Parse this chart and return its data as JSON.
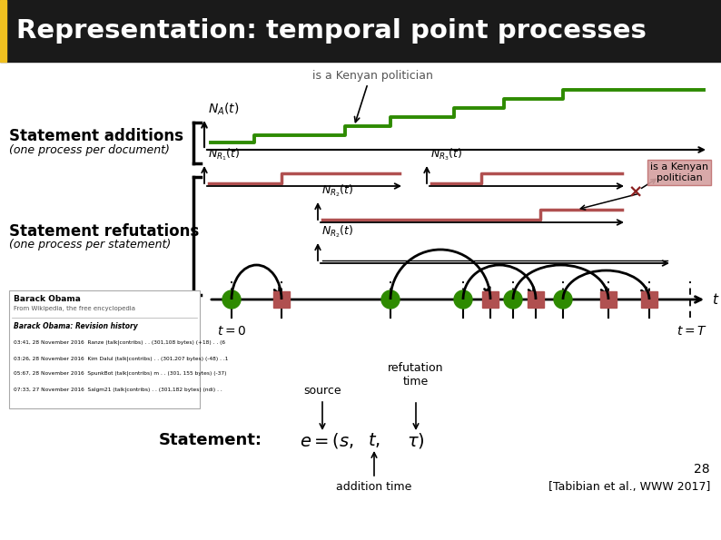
{
  "title": "Representation: temporal point processes",
  "title_bg": "#1a1a1a",
  "title_color": "#ffffff",
  "title_accent": "#f0c020",
  "bg_color": "#ffffff",
  "text_color": "#000000",
  "green_color": "#2e8b00",
  "red_color": "#b05050",
  "dark_red": "#8b2020",
  "annotation_kenyan": "is a Kenyan politician",
  "citation": "[Tabibian et al., WWW 2017]",
  "page_num": "28"
}
